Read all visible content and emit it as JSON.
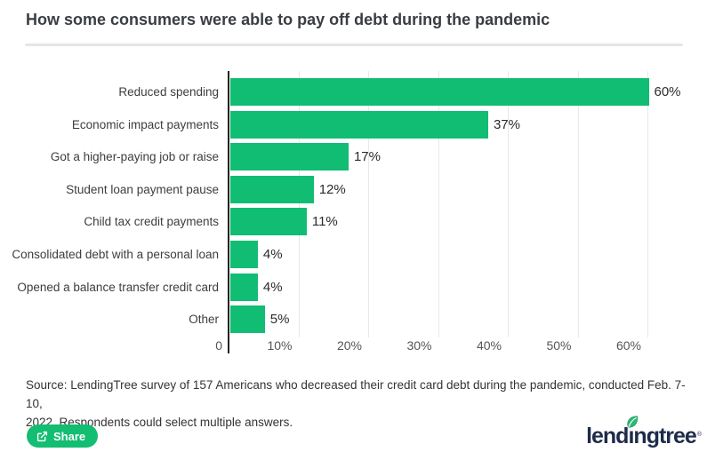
{
  "header": {
    "title": "How some consumers were able to pay off debt during the pandemic"
  },
  "chart_data": {
    "type": "bar",
    "orientation": "horizontal",
    "title": "How some consumers were able to pay off debt during the pandemic",
    "categories": [
      "Reduced spending",
      "Economic impact payments",
      "Got a higher-paying job or raise",
      "Student loan payment pause",
      "Child tax credit payments",
      "Consolidated debt with a personal loan",
      "Opened a balance transfer credit card",
      "Other"
    ],
    "values": [
      60,
      37,
      17,
      12,
      11,
      4,
      4,
      5
    ],
    "value_labels": [
      "60%",
      "37%",
      "17%",
      "12%",
      "11%",
      "4%",
      "4%",
      "5%"
    ],
    "x_ticks": [
      {
        "label": "0",
        "value": 0
      },
      {
        "label": "10%",
        "value": 10
      },
      {
        "label": "20%",
        "value": 20
      },
      {
        "label": "30%",
        "value": 30
      },
      {
        "label": "40%",
        "value": 40
      },
      {
        "label": "50%",
        "value": 50
      },
      {
        "label": "60%",
        "value": 60
      }
    ],
    "xlim": [
      0,
      64
    ],
    "grid": true,
    "legend": "none",
    "bar_color": "#10bd73",
    "axis_color": "#222222",
    "gridline_color": "#e8e8e8"
  },
  "footer": {
    "source_lines": [
      "Source: LendingTree survey of 157 Americans who decreased their credit card debt during the pandemic, conducted Feb. 7-10,",
      "2022. Respondents could select multiple answers."
    ],
    "share_label": "Share",
    "logo_text": "lendingtree",
    "registered_mark": "®"
  },
  "colors": {
    "accent_green": "#10bd73",
    "brand_navy": "#1e2b49",
    "divider": "#e5e5e5"
  }
}
